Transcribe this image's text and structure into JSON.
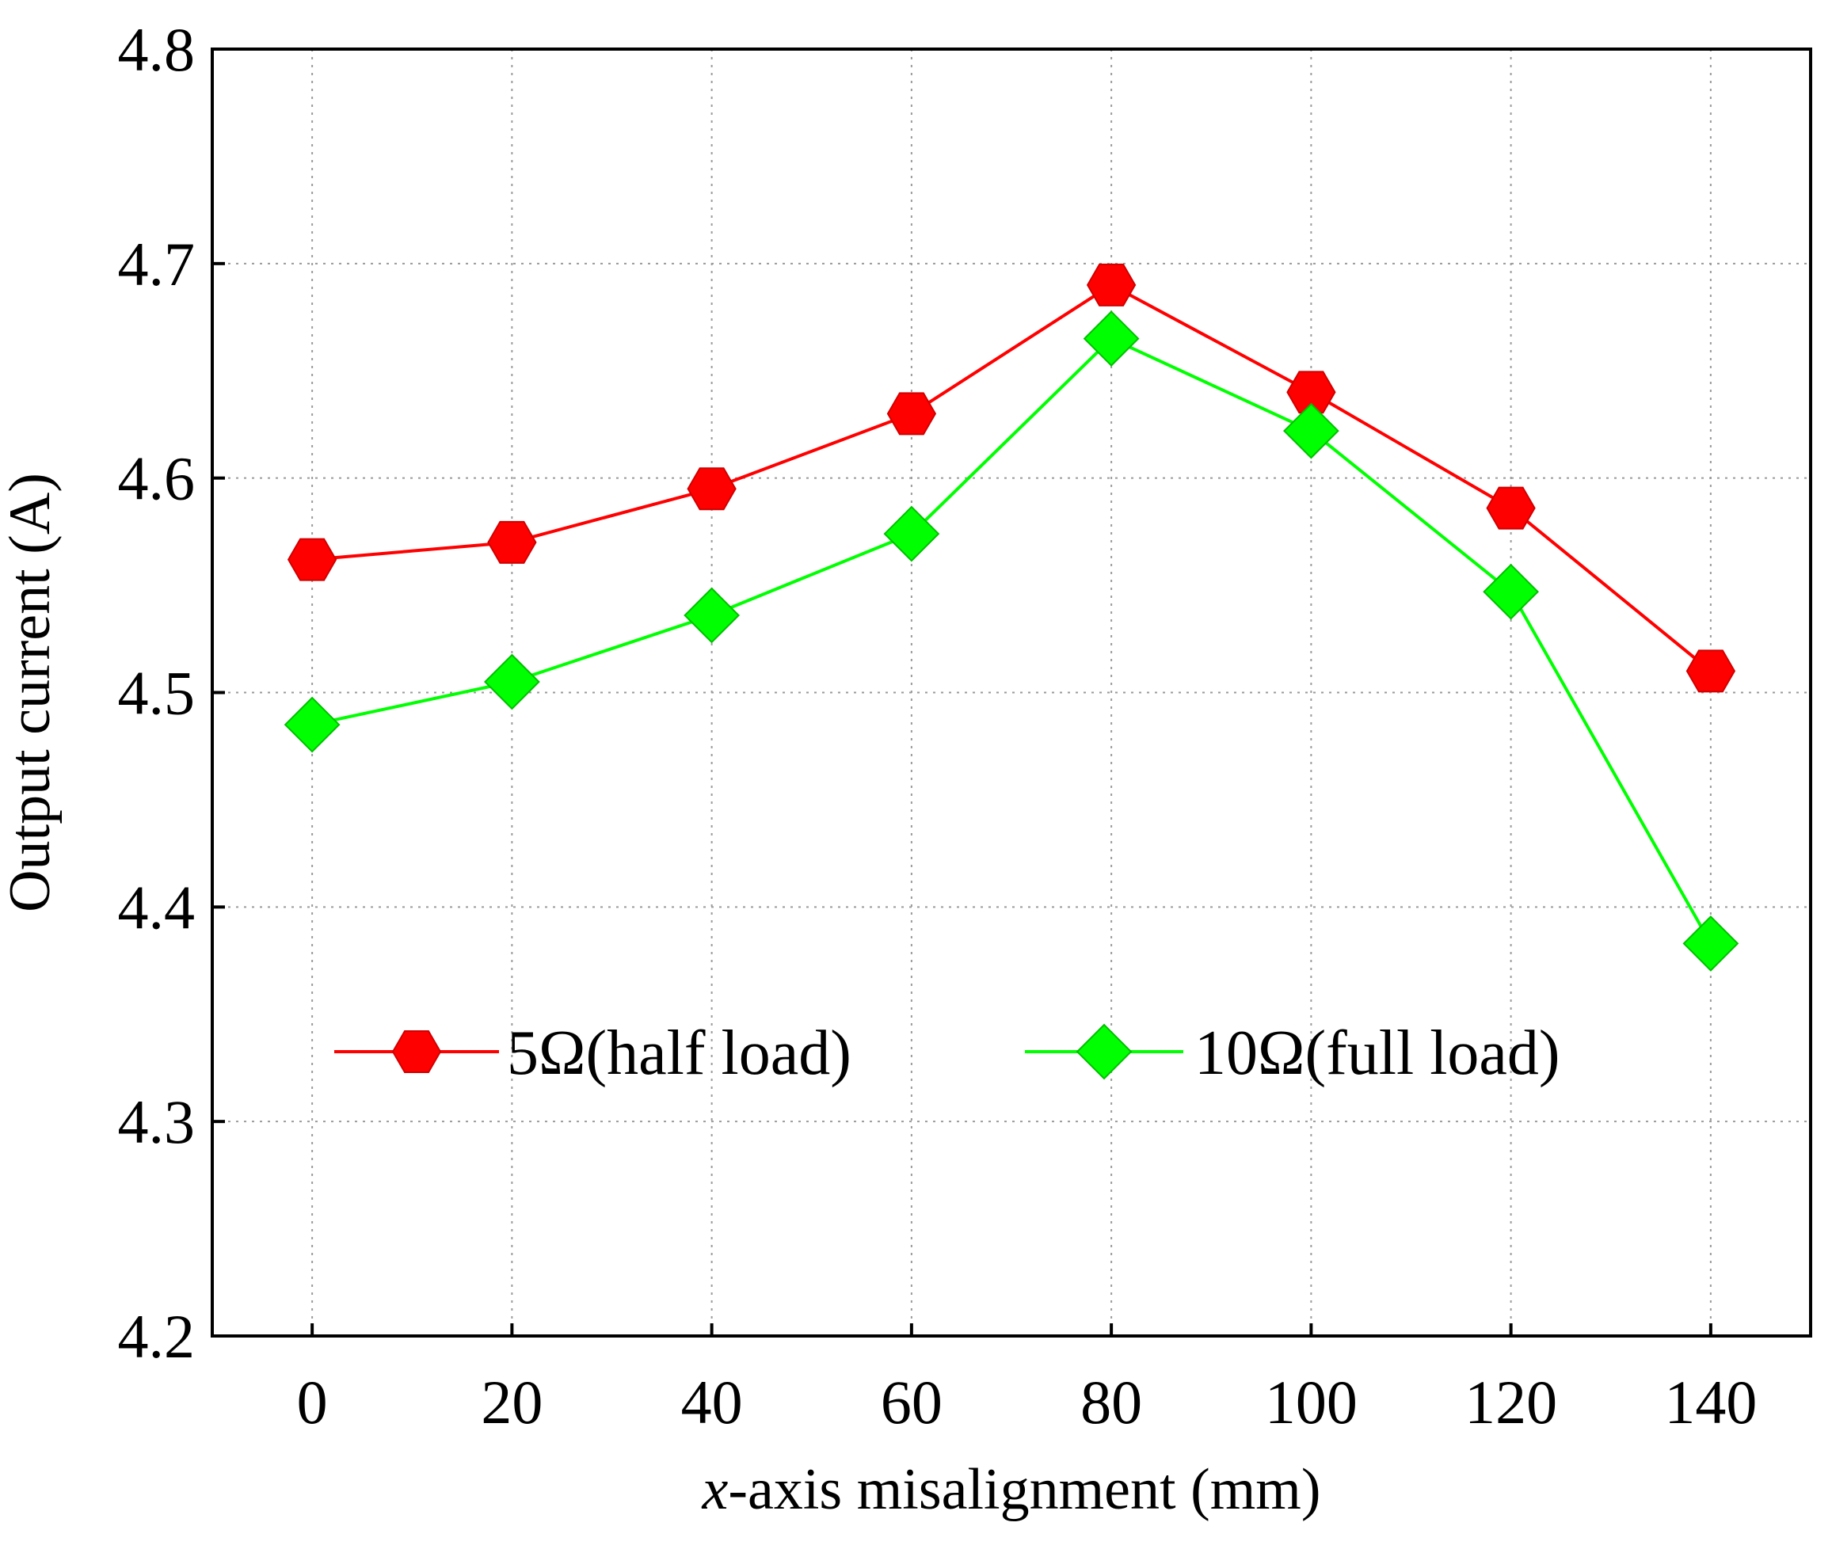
{
  "chart_data": {
    "type": "line",
    "title": "",
    "xlabel_italic": "x",
    "xlabel_rest": "-axis misalignment (mm)",
    "ylabel": "Output current (A)",
    "x": [
      0,
      20,
      40,
      60,
      80,
      100,
      120,
      140
    ],
    "x_tick_labels": [
      "0",
      "20",
      "40",
      "60",
      "80",
      "100",
      "120",
      "140"
    ],
    "xlim": [
      -10,
      150
    ],
    "ylim": [
      4.2,
      4.8
    ],
    "y_ticks": [
      4.2,
      4.3,
      4.4,
      4.5,
      4.6,
      4.7,
      4.8
    ],
    "y_tick_labels": [
      "4.2",
      "4.3",
      "4.4",
      "4.5",
      "4.6",
      "4.7",
      "4.8"
    ],
    "grid": true,
    "legend_position": "lower-center inside",
    "series": [
      {
        "name": "5Ω(half load)",
        "color": "#ff0000",
        "marker": "hexagon",
        "values": [
          4.562,
          4.57,
          4.595,
          4.63,
          4.69,
          4.64,
          4.586,
          4.51
        ]
      },
      {
        "name": "10Ω(full load)",
        "color": "#00ff00",
        "marker": "diamond",
        "values": [
          4.485,
          4.505,
          4.536,
          4.574,
          4.665,
          4.622,
          4.547,
          4.383
        ]
      }
    ]
  }
}
